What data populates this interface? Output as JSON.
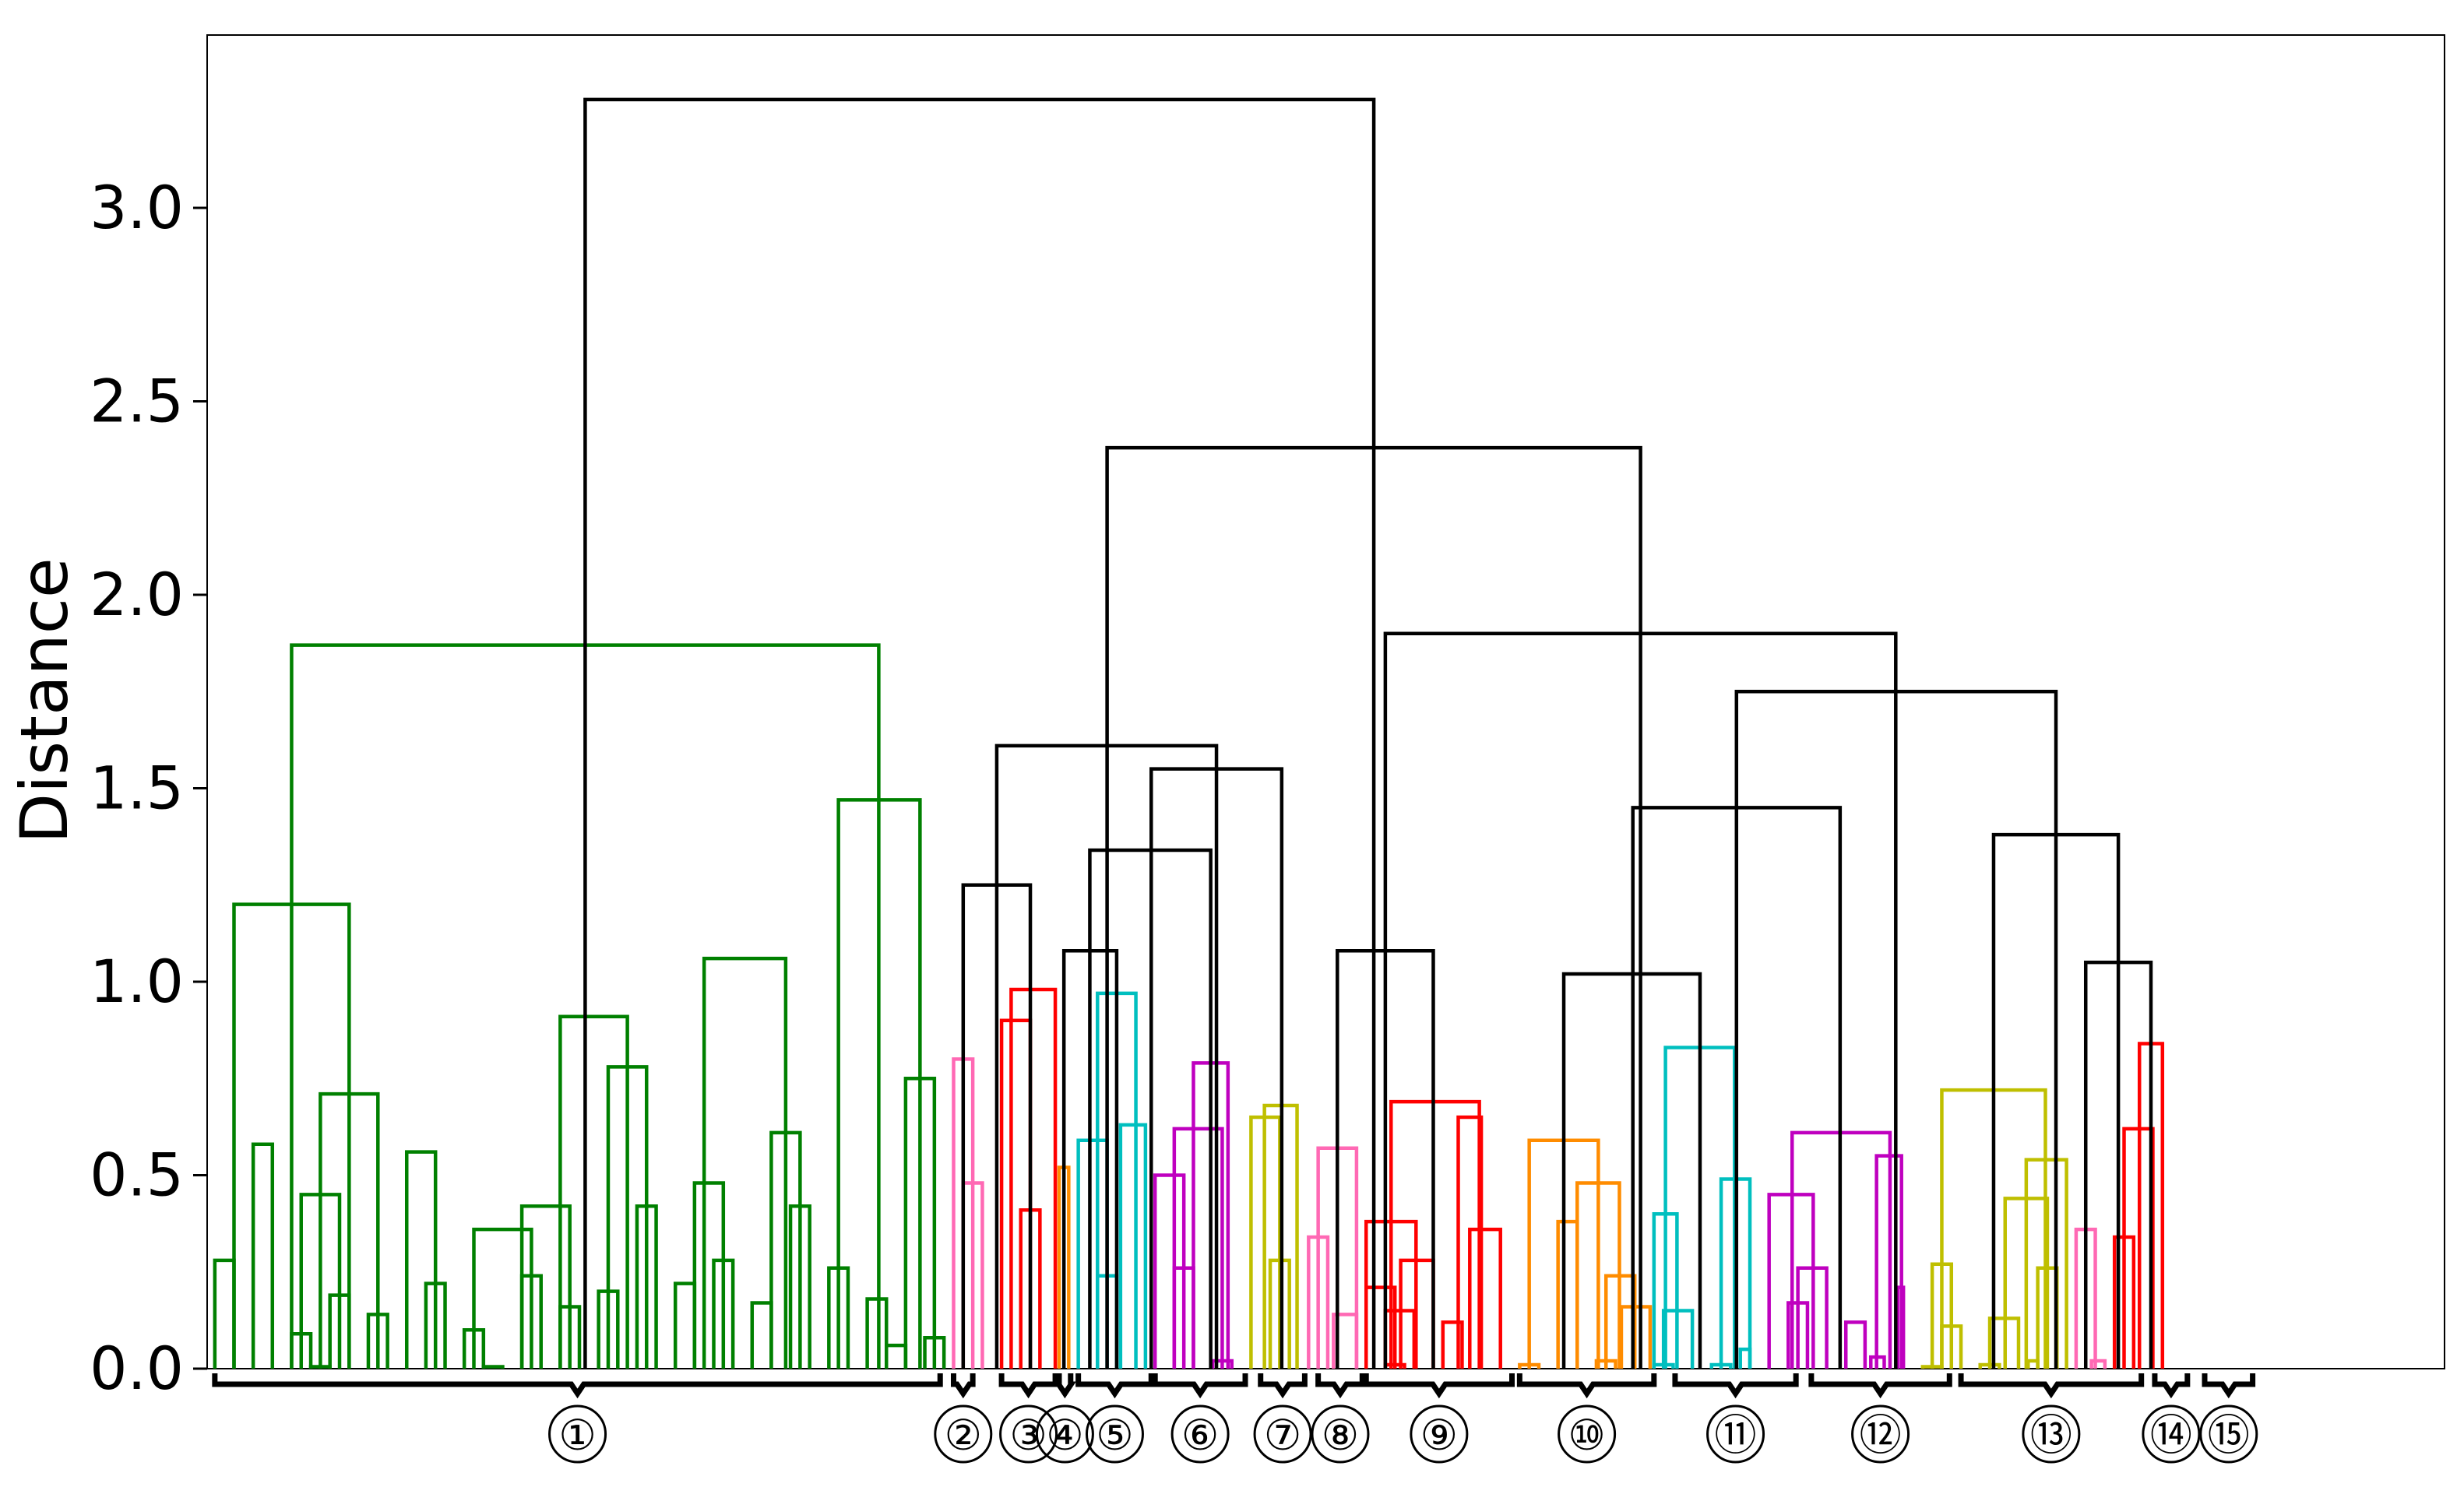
{
  "chart_data": {
    "type": "dendrogram",
    "title": "",
    "xlabel": "",
    "ylabel": "Distance",
    "ylim": [
      0,
      3.45
    ],
    "yticks": [
      0.0,
      0.5,
      1.0,
      1.5,
      2.0,
      2.5,
      3.0
    ],
    "ytick_labels": [
      "0.0",
      "0.5",
      "1.0",
      "1.5",
      "2.0",
      "2.5",
      "3.0"
    ],
    "grid": false,
    "legend": "none",
    "xlim_leaves": [
      -0.4,
      116.2
    ],
    "colors": {
      "green": "#008000",
      "pink": "#ff69b4",
      "red": "#ff0000",
      "orange": "#ff8c00",
      "cyan": "#00bfbf",
      "magenta": "#bf00bf",
      "olive": "#bfbf00",
      "black": "#000000"
    },
    "links": [
      [
        0,
        1,
        0.28,
        "green"
      ],
      [
        2,
        3,
        0.58,
        "green"
      ],
      [
        4,
        5,
        0.09,
        "green"
      ],
      [
        5,
        6,
        0.005,
        "green"
      ],
      [
        6,
        7,
        0.19,
        "green"
      ],
      [
        4.5,
        6.5,
        0.45,
        "green"
      ],
      [
        8,
        9,
        0.14,
        "green"
      ],
      [
        5.5,
        8.5,
        0.71,
        "green"
      ],
      [
        1,
        7,
        1.2,
        "green"
      ],
      [
        11,
        12,
        0.22,
        "green"
      ],
      [
        10,
        11.5,
        0.56,
        "green"
      ],
      [
        13,
        14,
        0.1,
        "green"
      ],
      [
        14,
        15,
        0.005,
        "green"
      ],
      [
        16,
        17,
        0.24,
        "green"
      ],
      [
        13.5,
        16.5,
        0.36,
        "green"
      ],
      [
        18,
        19,
        0.16,
        "green"
      ],
      [
        16,
        18.5,
        0.42,
        "green"
      ],
      [
        20,
        21,
        0.2,
        "green"
      ],
      [
        22,
        23,
        0.42,
        "green"
      ],
      [
        20.5,
        22.5,
        0.78,
        "green"
      ],
      [
        18,
        21.5,
        0.91,
        "green"
      ],
      [
        24,
        25,
        0.22,
        "green"
      ],
      [
        26,
        27,
        0.28,
        "green"
      ],
      [
        25,
        26.5,
        0.48,
        "green"
      ],
      [
        28,
        29,
        0.17,
        "green"
      ],
      [
        30,
        31,
        0.42,
        "green"
      ],
      [
        29,
        30.5,
        0.61,
        "green"
      ],
      [
        25.5,
        29.75,
        1.06,
        "green"
      ],
      [
        32,
        33,
        0.26,
        "green"
      ],
      [
        34,
        35,
        0.18,
        "green"
      ],
      [
        35,
        36,
        0.06,
        "green"
      ],
      [
        37,
        38,
        0.08,
        "green"
      ],
      [
        36,
        37.5,
        0.75,
        "green"
      ],
      [
        32.5,
        36.75,
        1.47,
        "green"
      ],
      [
        4,
        34.6,
        1.87,
        "green"
      ],
      [
        39,
        40,
        0.48,
        "pink"
      ],
      [
        38.5,
        39.5,
        0.8,
        "pink"
      ],
      [
        42,
        43,
        0.41,
        "red"
      ],
      [
        41,
        42.5,
        0.9,
        "red"
      ],
      [
        41.5,
        43.8,
        0.98,
        "red"
      ],
      [
        39,
        42.5,
        1.25,
        "black"
      ],
      [
        44,
        44.5,
        0.52,
        "orange"
      ],
      [
        46,
        47,
        0.24,
        "cyan"
      ],
      [
        45,
        46.5,
        0.59,
        "cyan"
      ],
      [
        47.2,
        48.5,
        0.63,
        "cyan"
      ],
      [
        46,
        48,
        0.97,
        "cyan"
      ],
      [
        44.25,
        47,
        1.08,
        "black"
      ],
      [
        50,
        51,
        0.26,
        "magenta"
      ],
      [
        49,
        50.5,
        0.5,
        "magenta"
      ],
      [
        52,
        53,
        0.02,
        "magenta"
      ],
      [
        50,
        52.5,
        0.62,
        "magenta"
      ],
      [
        51,
        52.8,
        0.79,
        "magenta"
      ],
      [
        45.6,
        51.9,
        1.34,
        "black"
      ],
      [
        55,
        56,
        0.28,
        "olive"
      ],
      [
        54,
        55.5,
        0.65,
        "olive"
      ],
      [
        54.7,
        56.4,
        0.68,
        "olive"
      ],
      [
        48.8,
        55.6,
        1.55,
        "black"
      ],
      [
        40.75,
        52.2,
        1.61,
        "black"
      ],
      [
        57,
        58,
        0.34,
        "pink"
      ],
      [
        58.3,
        59.5,
        0.14,
        "pink"
      ],
      [
        57.5,
        59.5,
        0.57,
        "pink"
      ],
      [
        61,
        62,
        0.01,
        "red"
      ],
      [
        60,
        61.5,
        0.21,
        "red"
      ],
      [
        61,
        62.5,
        0.15,
        "red"
      ],
      [
        61.8,
        63.5,
        0.28,
        "red"
      ],
      [
        60,
        62.6,
        0.38,
        "red"
      ],
      [
        64,
        65,
        0.12,
        "red"
      ],
      [
        64.8,
        66,
        0.65,
        "red"
      ],
      [
        65.4,
        67,
        0.36,
        "red"
      ],
      [
        61.3,
        65.9,
        0.69,
        "red"
      ],
      [
        58.5,
        63.5,
        1.08,
        "black"
      ],
      [
        68,
        69,
        0.01,
        "orange"
      ],
      [
        70,
        71,
        0.38,
        "orange"
      ],
      [
        72,
        73,
        0.02,
        "orange"
      ],
      [
        72.5,
        74,
        0.24,
        "orange"
      ],
      [
        73.3,
        74.8,
        0.16,
        "orange"
      ],
      [
        71,
        73.2,
        0.48,
        "orange"
      ],
      [
        68.5,
        72.1,
        0.59,
        "orange"
      ],
      [
        75,
        76,
        0.01,
        "cyan"
      ],
      [
        75.5,
        77,
        0.15,
        "cyan"
      ],
      [
        75,
        76.2,
        0.4,
        "cyan"
      ],
      [
        78,
        79,
        0.01,
        "cyan"
      ],
      [
        79.5,
        80,
        0.05,
        "cyan"
      ],
      [
        78.5,
        80,
        0.49,
        "cyan"
      ],
      [
        75.6,
        79.2,
        0.83,
        "cyan"
      ],
      [
        70.3,
        77.4,
        1.02,
        "black"
      ],
      [
        82,
        83,
        0.17,
        "magenta"
      ],
      [
        82.5,
        84,
        0.26,
        "magenta"
      ],
      [
        81,
        83.3,
        0.45,
        "magenta"
      ],
      [
        85,
        86,
        0.12,
        "magenta"
      ],
      [
        86.3,
        87,
        0.03,
        "magenta"
      ],
      [
        87.7,
        88,
        0.21,
        "magenta"
      ],
      [
        86.6,
        87.9,
        0.55,
        "magenta"
      ],
      [
        82.2,
        87.3,
        0.61,
        "magenta"
      ],
      [
        73.9,
        84.7,
        1.45,
        "black"
      ],
      [
        89,
        90,
        0.005,
        "olive"
      ],
      [
        90,
        91,
        0.11,
        "olive"
      ],
      [
        89.5,
        90.5,
        0.27,
        "olive"
      ],
      [
        92,
        93,
        0.01,
        "olive"
      ],
      [
        92.5,
        94,
        0.13,
        "olive"
      ],
      [
        94.5,
        95,
        0.02,
        "olive"
      ],
      [
        95,
        96,
        0.26,
        "olive"
      ],
      [
        93.3,
        95.5,
        0.44,
        "olive"
      ],
      [
        94.4,
        96.5,
        0.54,
        "olive"
      ],
      [
        90,
        95.4,
        0.72,
        "olive"
      ],
      [
        97,
        98,
        0.36,
        "pink"
      ],
      [
        97.8,
        98.5,
        0.02,
        "pink"
      ],
      [
        99,
        100,
        0.34,
        "red"
      ],
      [
        99.5,
        101,
        0.62,
        "red"
      ],
      [
        100.3,
        101.5,
        0.84,
        "red"
      ],
      [
        97.5,
        100.9,
        1.05,
        "black"
      ],
      [
        92.7,
        99.2,
        1.38,
        "black"
      ],
      [
        79.3,
        95.95,
        1.75,
        "black"
      ],
      [
        61,
        87.6,
        1.9,
        "black"
      ],
      [
        46.5,
        74.3,
        2.38,
        "black"
      ],
      [
        19.3,
        60.4,
        3.28,
        "black"
      ]
    ],
    "clusters": [
      {
        "label": "①",
        "from": 0,
        "to": 37.8
      },
      {
        "label": "②",
        "from": 38.5,
        "to": 39.5
      },
      {
        "label": "③",
        "from": 41,
        "to": 43.8
      },
      {
        "label": "④",
        "from": 44,
        "to": 44.6
      },
      {
        "label": "⑤",
        "from": 45,
        "to": 48.8
      },
      {
        "label": "⑥",
        "from": 49,
        "to": 53.7
      },
      {
        "label": "⑦",
        "from": 54.5,
        "to": 56.8
      },
      {
        "label": "⑧",
        "from": 57.5,
        "to": 59.8
      },
      {
        "label": "⑨",
        "from": 60,
        "to": 67.6
      },
      {
        "label": "⑩",
        "from": 68,
        "to": 75
      },
      {
        "label": "⑪",
        "from": 76.1,
        "to": 82.4
      },
      {
        "label": "⑫",
        "from": 83.2,
        "to": 90.4
      },
      {
        "label": "⑬",
        "from": 91,
        "to": 100.4
      },
      {
        "label": "⑭",
        "from": 101.1,
        "to": 102.8
      },
      {
        "label": "⑮",
        "from": 103.7,
        "to": 106.2
      }
    ]
  }
}
